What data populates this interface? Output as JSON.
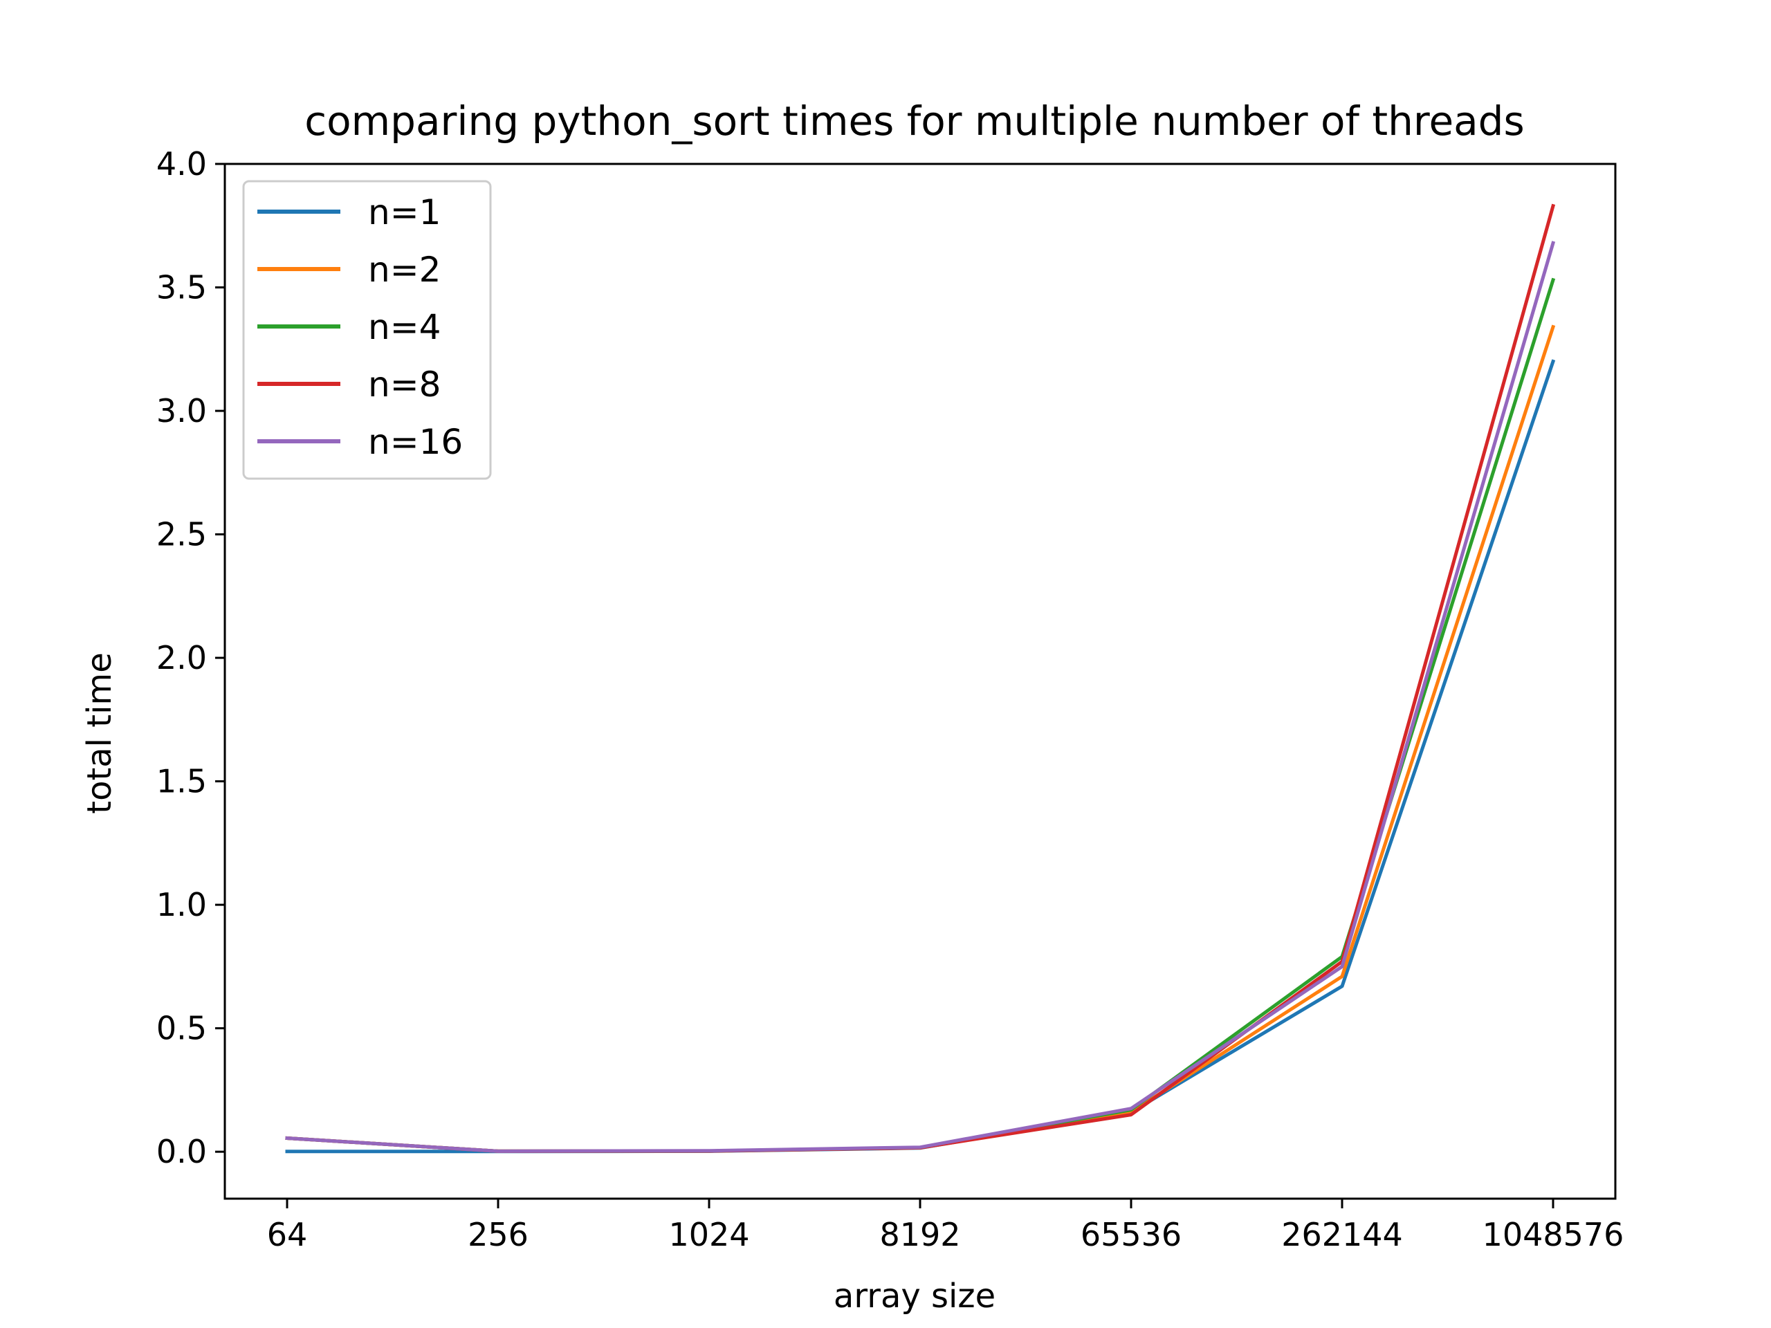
{
  "chart_data": {
    "type": "line",
    "title": "comparing python_sort times for multiple number of threads",
    "xlabel": "array size",
    "ylabel": "total time",
    "categories": [
      "64",
      "256",
      "1024",
      "8192",
      "65536",
      "262144",
      "1048576"
    ],
    "ylim": [
      -0.19,
      4.0
    ],
    "yticks": [
      0.0,
      0.5,
      1.0,
      1.5,
      2.0,
      2.5,
      3.0,
      3.5,
      4.0
    ],
    "ytick_labels": [
      "0.0",
      "0.5",
      "1.0",
      "1.5",
      "2.0",
      "2.5",
      "3.0",
      "3.5",
      "4.0"
    ],
    "grid": false,
    "legend_position": "top-left",
    "series": [
      {
        "name": "n=1",
        "color": "#1f77b4",
        "values": [
          0.001,
          0.001,
          0.002,
          0.015,
          0.16,
          0.67,
          3.2
        ]
      },
      {
        "name": "n=2",
        "color": "#ff7f0e",
        "values": [
          0.055,
          0.002,
          0.003,
          0.016,
          0.16,
          0.71,
          3.34
        ]
      },
      {
        "name": "n=4",
        "color": "#2ca02c",
        "values": [
          0.055,
          0.002,
          0.003,
          0.017,
          0.17,
          0.79,
          3.53
        ]
      },
      {
        "name": "n=8",
        "color": "#d62728",
        "values": [
          0.055,
          0.002,
          0.003,
          0.016,
          0.15,
          0.77,
          3.83
        ]
      },
      {
        "name": "n=16",
        "color": "#9467bd",
        "values": [
          0.055,
          0.002,
          0.004,
          0.018,
          0.175,
          0.75,
          3.68
        ]
      }
    ]
  }
}
